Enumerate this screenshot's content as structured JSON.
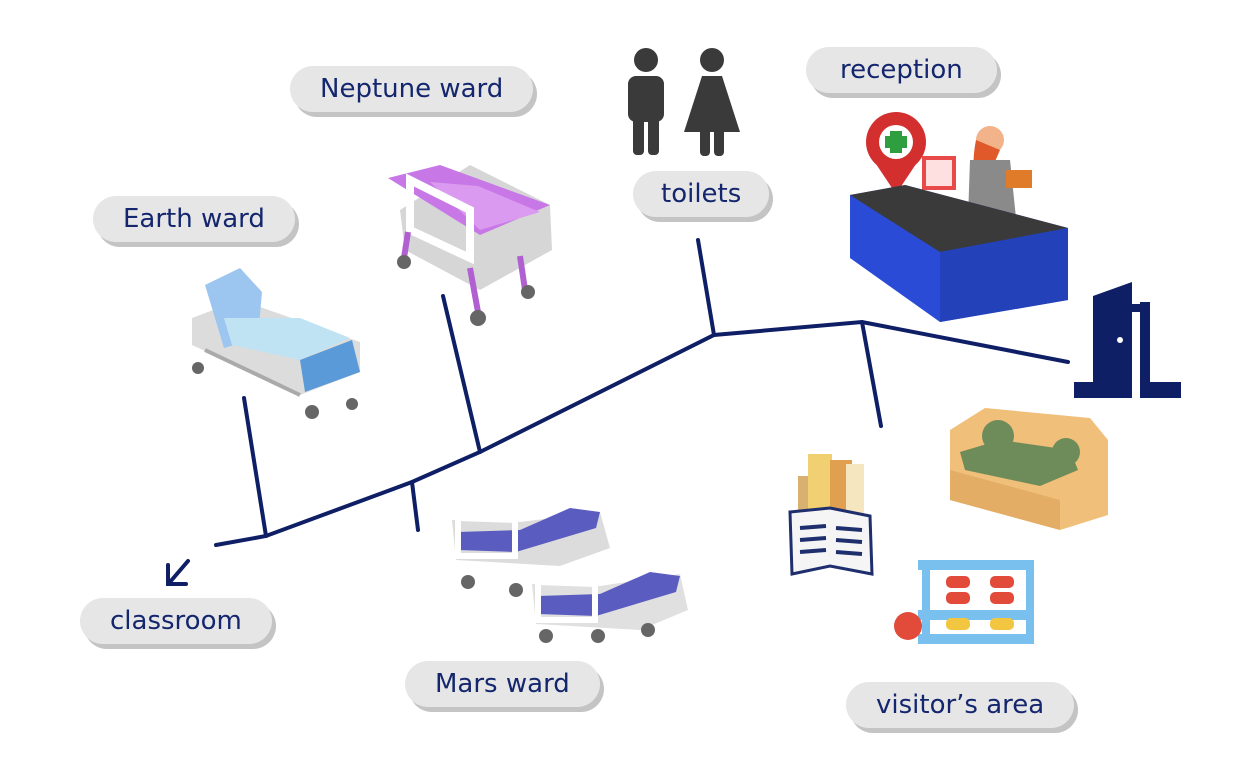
{
  "labels": {
    "neptune": "Neptune ward",
    "toilets": "toilets",
    "reception": "reception",
    "earth": "Earth ward",
    "classroom": "classroom",
    "mars": "Mars ward",
    "visitors": "visitor’s area"
  },
  "colors": {
    "path": "#0f1f66",
    "label_bg": "#e6e6e6",
    "label_shadow": "#c4c4c4",
    "label_text": "#14266e",
    "door": "#0f1f66"
  }
}
